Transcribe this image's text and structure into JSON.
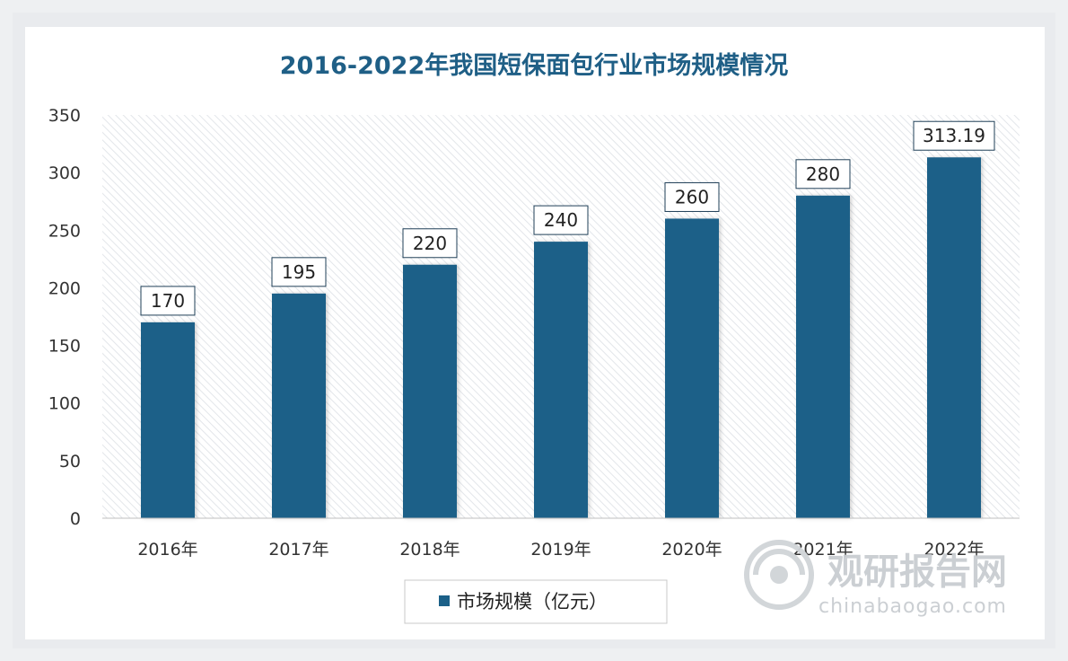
{
  "chart_data": {
    "type": "bar",
    "title": "2016-2022年我国短保面包行业市场规模情况",
    "categories": [
      "2016年",
      "2017年",
      "2018年",
      "2019年",
      "2020年",
      "2021年",
      "2022年"
    ],
    "series": [
      {
        "name": "市场规模（亿元）",
        "values": [
          170,
          195,
          220,
          240,
          260,
          280,
          313.19
        ],
        "labels": [
          "170",
          "195",
          "220",
          "240",
          "260",
          "280",
          "313.19"
        ]
      }
    ],
    "ylim": [
      0,
      350
    ],
    "yticks": [
      "0",
      "50",
      "100",
      "150",
      "200",
      "250",
      "300",
      "350"
    ],
    "bar_color": "#1b6088",
    "title_color": "#1f5f86",
    "grid": false,
    "legend_position": "bottom-center"
  },
  "watermark": {
    "name": "观研报告网",
    "url": "chinabaogao.com",
    "logo_icon": "swirl-logo-icon"
  }
}
